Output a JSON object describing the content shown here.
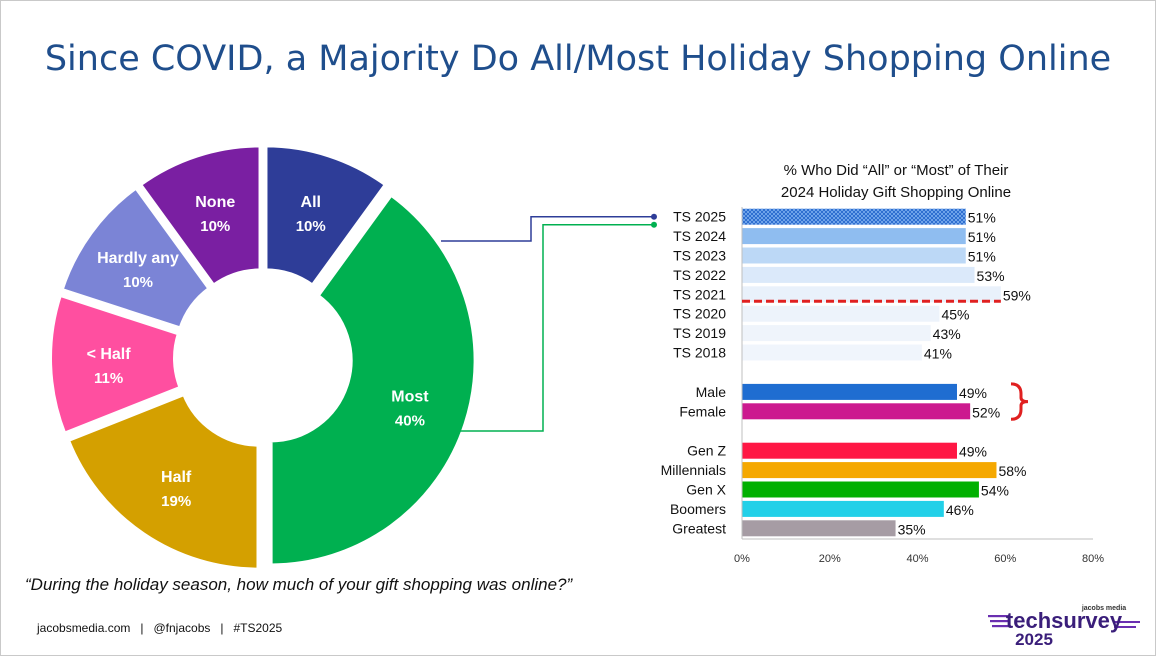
{
  "title": "Since COVID, a Majority Do All/Most Holiday Shopping Online",
  "question": "“During the holiday season, how much of your gift shopping was online?”",
  "footer": "jacobsmedia.com   |   @fnjacobs   |   #TS2025",
  "logo": {
    "top": "jacobs media",
    "main": "techsurvey",
    "year": "2025"
  },
  "chart_data": [
    {
      "type": "pie",
      "style": "donut",
      "slices": [
        {
          "label": "All",
          "value": 10,
          "pct": "10%",
          "color": "#2e3d98"
        },
        {
          "label": "Most",
          "value": 40,
          "pct": "40%",
          "color": "#00b050"
        },
        {
          "label": "Half",
          "value": 19,
          "pct": "19%",
          "color": "#d4a000"
        },
        {
          "label": "< Half",
          "value": 11,
          "pct": "11%",
          "color": "#ff4fa0"
        },
        {
          "label": "Hardly any",
          "value": 10,
          "pct": "10%",
          "color": "#7b84d6"
        },
        {
          "label": "None",
          "value": 10,
          "pct": "10%",
          "color": "#7a1fa2"
        }
      ]
    },
    {
      "type": "bar",
      "orientation": "horizontal",
      "title_lines": [
        "% Who Did “All” or “Most” of Their",
        "2024 Holiday Gift Shopping Online"
      ],
      "xlim": [
        0,
        80
      ],
      "xticks": [
        "0%",
        "20%",
        "40%",
        "60%",
        "80%"
      ],
      "groups": [
        [
          {
            "label": "TS 2025",
            "value": 51,
            "text": "51%",
            "color": "#2f6fd0",
            "pattern": true
          },
          {
            "label": "TS 2024",
            "value": 51,
            "text": "51%",
            "color": "#8fbdf0"
          },
          {
            "label": "TS 2023",
            "value": 51,
            "text": "51%",
            "color": "#bcd8f6"
          },
          {
            "label": "TS 2022",
            "value": 53,
            "text": "53%",
            "color": "#dbe9fa"
          },
          {
            "label": "TS 2021",
            "value": 59,
            "text": "59%",
            "color": "#e9f1fb"
          },
          {
            "label": "TS 2020",
            "value": 45,
            "text": "45%",
            "color": "#edf3fb"
          },
          {
            "label": "TS 2019",
            "value": 43,
            "text": "43%",
            "color": "#eff4fb"
          },
          {
            "label": "TS 2018",
            "value": 41,
            "text": "41%",
            "color": "#f0f5fc"
          }
        ],
        [
          {
            "label": "Male",
            "value": 49,
            "text": "49%",
            "color": "#1f6dd1"
          },
          {
            "label": "Female",
            "value": 52,
            "text": "52%",
            "color": "#cc1a8f"
          }
        ],
        [
          {
            "label": "Gen Z",
            "value": 49,
            "text": "49%",
            "color": "#ff1744"
          },
          {
            "label": "Millennials",
            "value": 58,
            "text": "58%",
            "color": "#f5a800"
          },
          {
            "label": "Gen X",
            "value": 54,
            "text": "54%",
            "color": "#00b000"
          },
          {
            "label": "Boomers",
            "value": 46,
            "text": "46%",
            "color": "#22d0e8"
          },
          {
            "label": "Greatest",
            "value": 35,
            "text": "35%",
            "color": "#a69ca4"
          }
        ]
      ]
    }
  ]
}
